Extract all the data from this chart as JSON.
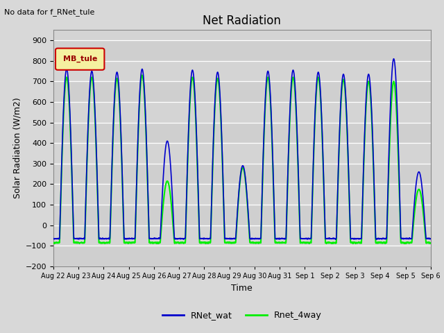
{
  "title": "Net Radiation",
  "xlabel": "Time",
  "ylabel": "Solar Radiation (W/m2)",
  "top_left_text": "No data for f_RNet_tule",
  "legend_box_text": "MB_tule",
  "legend_entries": [
    "RNet_wat",
    "Rnet_4way"
  ],
  "legend_colors": [
    "#0000cc",
    "#00ee00"
  ],
  "ylim": [
    -200,
    950
  ],
  "yticks": [
    -200,
    -100,
    0,
    100,
    200,
    300,
    400,
    500,
    600,
    700,
    800,
    900
  ],
  "background_color": "#d8d8d8",
  "plot_bg_color": "#d4d4d4",
  "grid_color": "#ffffff",
  "num_days": 15,
  "pts_per_day": 288,
  "peak_blue": [
    760,
    750,
    745,
    760,
    410,
    755,
    745,
    290,
    750,
    755,
    745,
    735,
    735,
    810,
    260
  ],
  "peak_green": [
    720,
    720,
    715,
    730,
    215,
    720,
    715,
    280,
    720,
    720,
    720,
    710,
    700,
    700,
    175
  ],
  "night_blue": -65,
  "night_green": -85,
  "rise_hour": 6.0,
  "set_hour": 19.5,
  "blue_lw": 1.2,
  "green_lw": 1.5
}
